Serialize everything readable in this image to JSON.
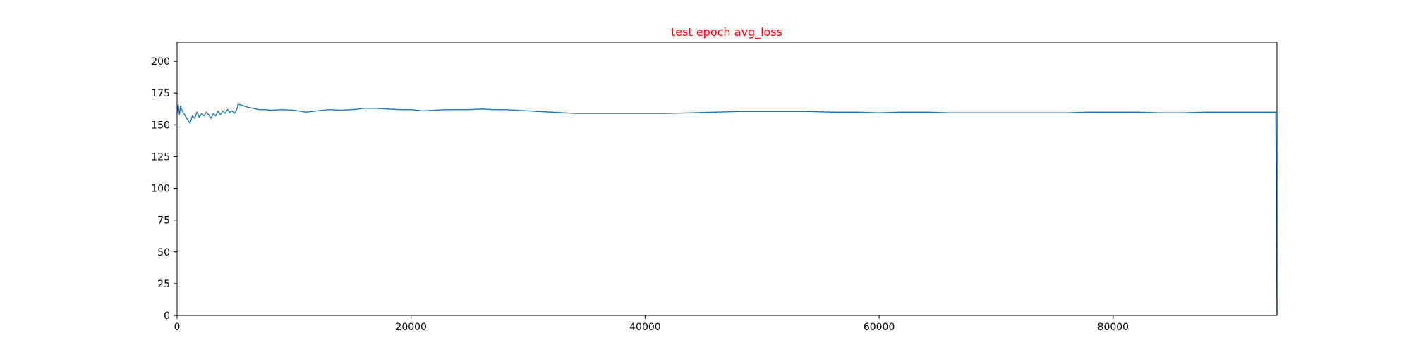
{
  "chart_data": {
    "type": "line",
    "title": "test epoch avg_loss",
    "title_color": "#ff0000",
    "xlabel": "",
    "ylabel": "",
    "xlim": [
      0,
      94000
    ],
    "ylim": [
      0,
      215
    ],
    "grid": false,
    "x_ticks": [
      {
        "value": 0,
        "label": "0"
      },
      {
        "value": 20000,
        "label": "20000"
      },
      {
        "value": 40000,
        "label": "40000"
      },
      {
        "value": 60000,
        "label": "60000"
      },
      {
        "value": 80000,
        "label": "80000"
      }
    ],
    "y_ticks": [
      {
        "value": 0,
        "label": "0"
      },
      {
        "value": 25,
        "label": "25"
      },
      {
        "value": 50,
        "label": "50"
      },
      {
        "value": 75,
        "label": "75"
      },
      {
        "value": 100,
        "label": "100"
      },
      {
        "value": 125,
        "label": "125"
      },
      {
        "value": 150,
        "label": "150"
      },
      {
        "value": 175,
        "label": "175"
      },
      {
        "value": 200,
        "label": "200"
      }
    ],
    "series": [
      {
        "color": "#1f77b4",
        "x": [
          0,
          100,
          200,
          300,
          400,
          500,
          700,
          900,
          1100,
          1300,
          1500,
          1700,
          1900,
          2100,
          2300,
          2500,
          2700,
          2900,
          3100,
          3300,
          3500,
          3700,
          3900,
          4100,
          4300,
          4500,
          4700,
          4900,
          5100,
          5200,
          5300,
          5500,
          6000,
          6500,
          7000,
          7500,
          8000,
          9000,
          10000,
          11000,
          12000,
          13000,
          14000,
          15000,
          16000,
          17000,
          18000,
          19000,
          20000,
          21000,
          22000,
          23000,
          24000,
          25000,
          26000,
          27000,
          28000,
          29000,
          30000,
          32000,
          34000,
          36000,
          38000,
          40000,
          42000,
          44000,
          46000,
          48000,
          50000,
          52000,
          54000,
          56000,
          58000,
          60000,
          62000,
          64000,
          66000,
          68000,
          70000,
          72000,
          74000,
          76000,
          78000,
          80000,
          82000,
          84000,
          86000,
          88000,
          90000,
          92000,
          93900,
          94000
        ],
        "y": [
          160,
          166,
          158,
          165,
          162,
          160,
          157,
          154,
          151,
          157,
          155,
          160,
          156,
          159,
          157,
          160,
          158,
          155,
          159,
          157,
          161,
          158,
          161,
          159,
          162,
          160,
          161,
          159,
          162,
          166,
          166,
          165.5,
          164,
          163,
          162,
          162,
          161.5,
          162,
          161.5,
          160,
          161,
          162,
          161.5,
          162,
          163,
          163,
          162.5,
          162,
          162,
          161,
          161.5,
          162,
          162,
          162,
          162.5,
          162,
          162,
          161.5,
          161,
          160,
          159,
          159,
          159,
          159,
          159,
          159.5,
          160,
          160.5,
          160.5,
          160.5,
          160.5,
          160,
          160,
          159.5,
          160,
          160,
          159.5,
          159.5,
          159.5,
          159.5,
          159.5,
          159.5,
          160,
          160,
          160,
          159.5,
          159.5,
          160,
          160,
          160,
          160,
          0
        ]
      }
    ]
  }
}
